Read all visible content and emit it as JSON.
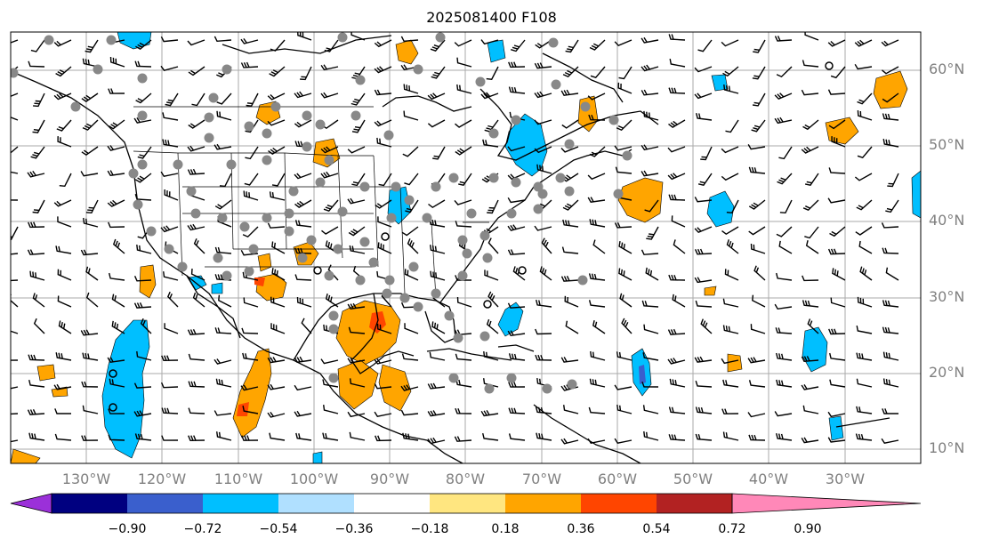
{
  "title": "2025081400 F108",
  "lat_labels": [
    "60°N",
    "50°N",
    "40°N",
    "30°N",
    "20°N",
    "10°N"
  ],
  "lon_labels": [
    "130°W",
    "120°W",
    "110°W",
    "100°W",
    "90°W",
    "80°W",
    "70°W",
    "60°W",
    "50°W",
    "40°W",
    "30°W"
  ],
  "colorbar": {
    "ticks": [
      "−0.90",
      "−0.72",
      "−0.54",
      "−0.36",
      "−0.18",
      "0.18",
      "0.36",
      "0.54",
      "0.72",
      "0.90"
    ],
    "colors": [
      "#9b30d9",
      "#000080",
      "#3a5fcd",
      "#00bfff",
      "#b0e0ff",
      "#ffffff",
      "#ffe680",
      "#ffa500",
      "#ff4500",
      "#b22222",
      "#ff88b8"
    ]
  }
}
